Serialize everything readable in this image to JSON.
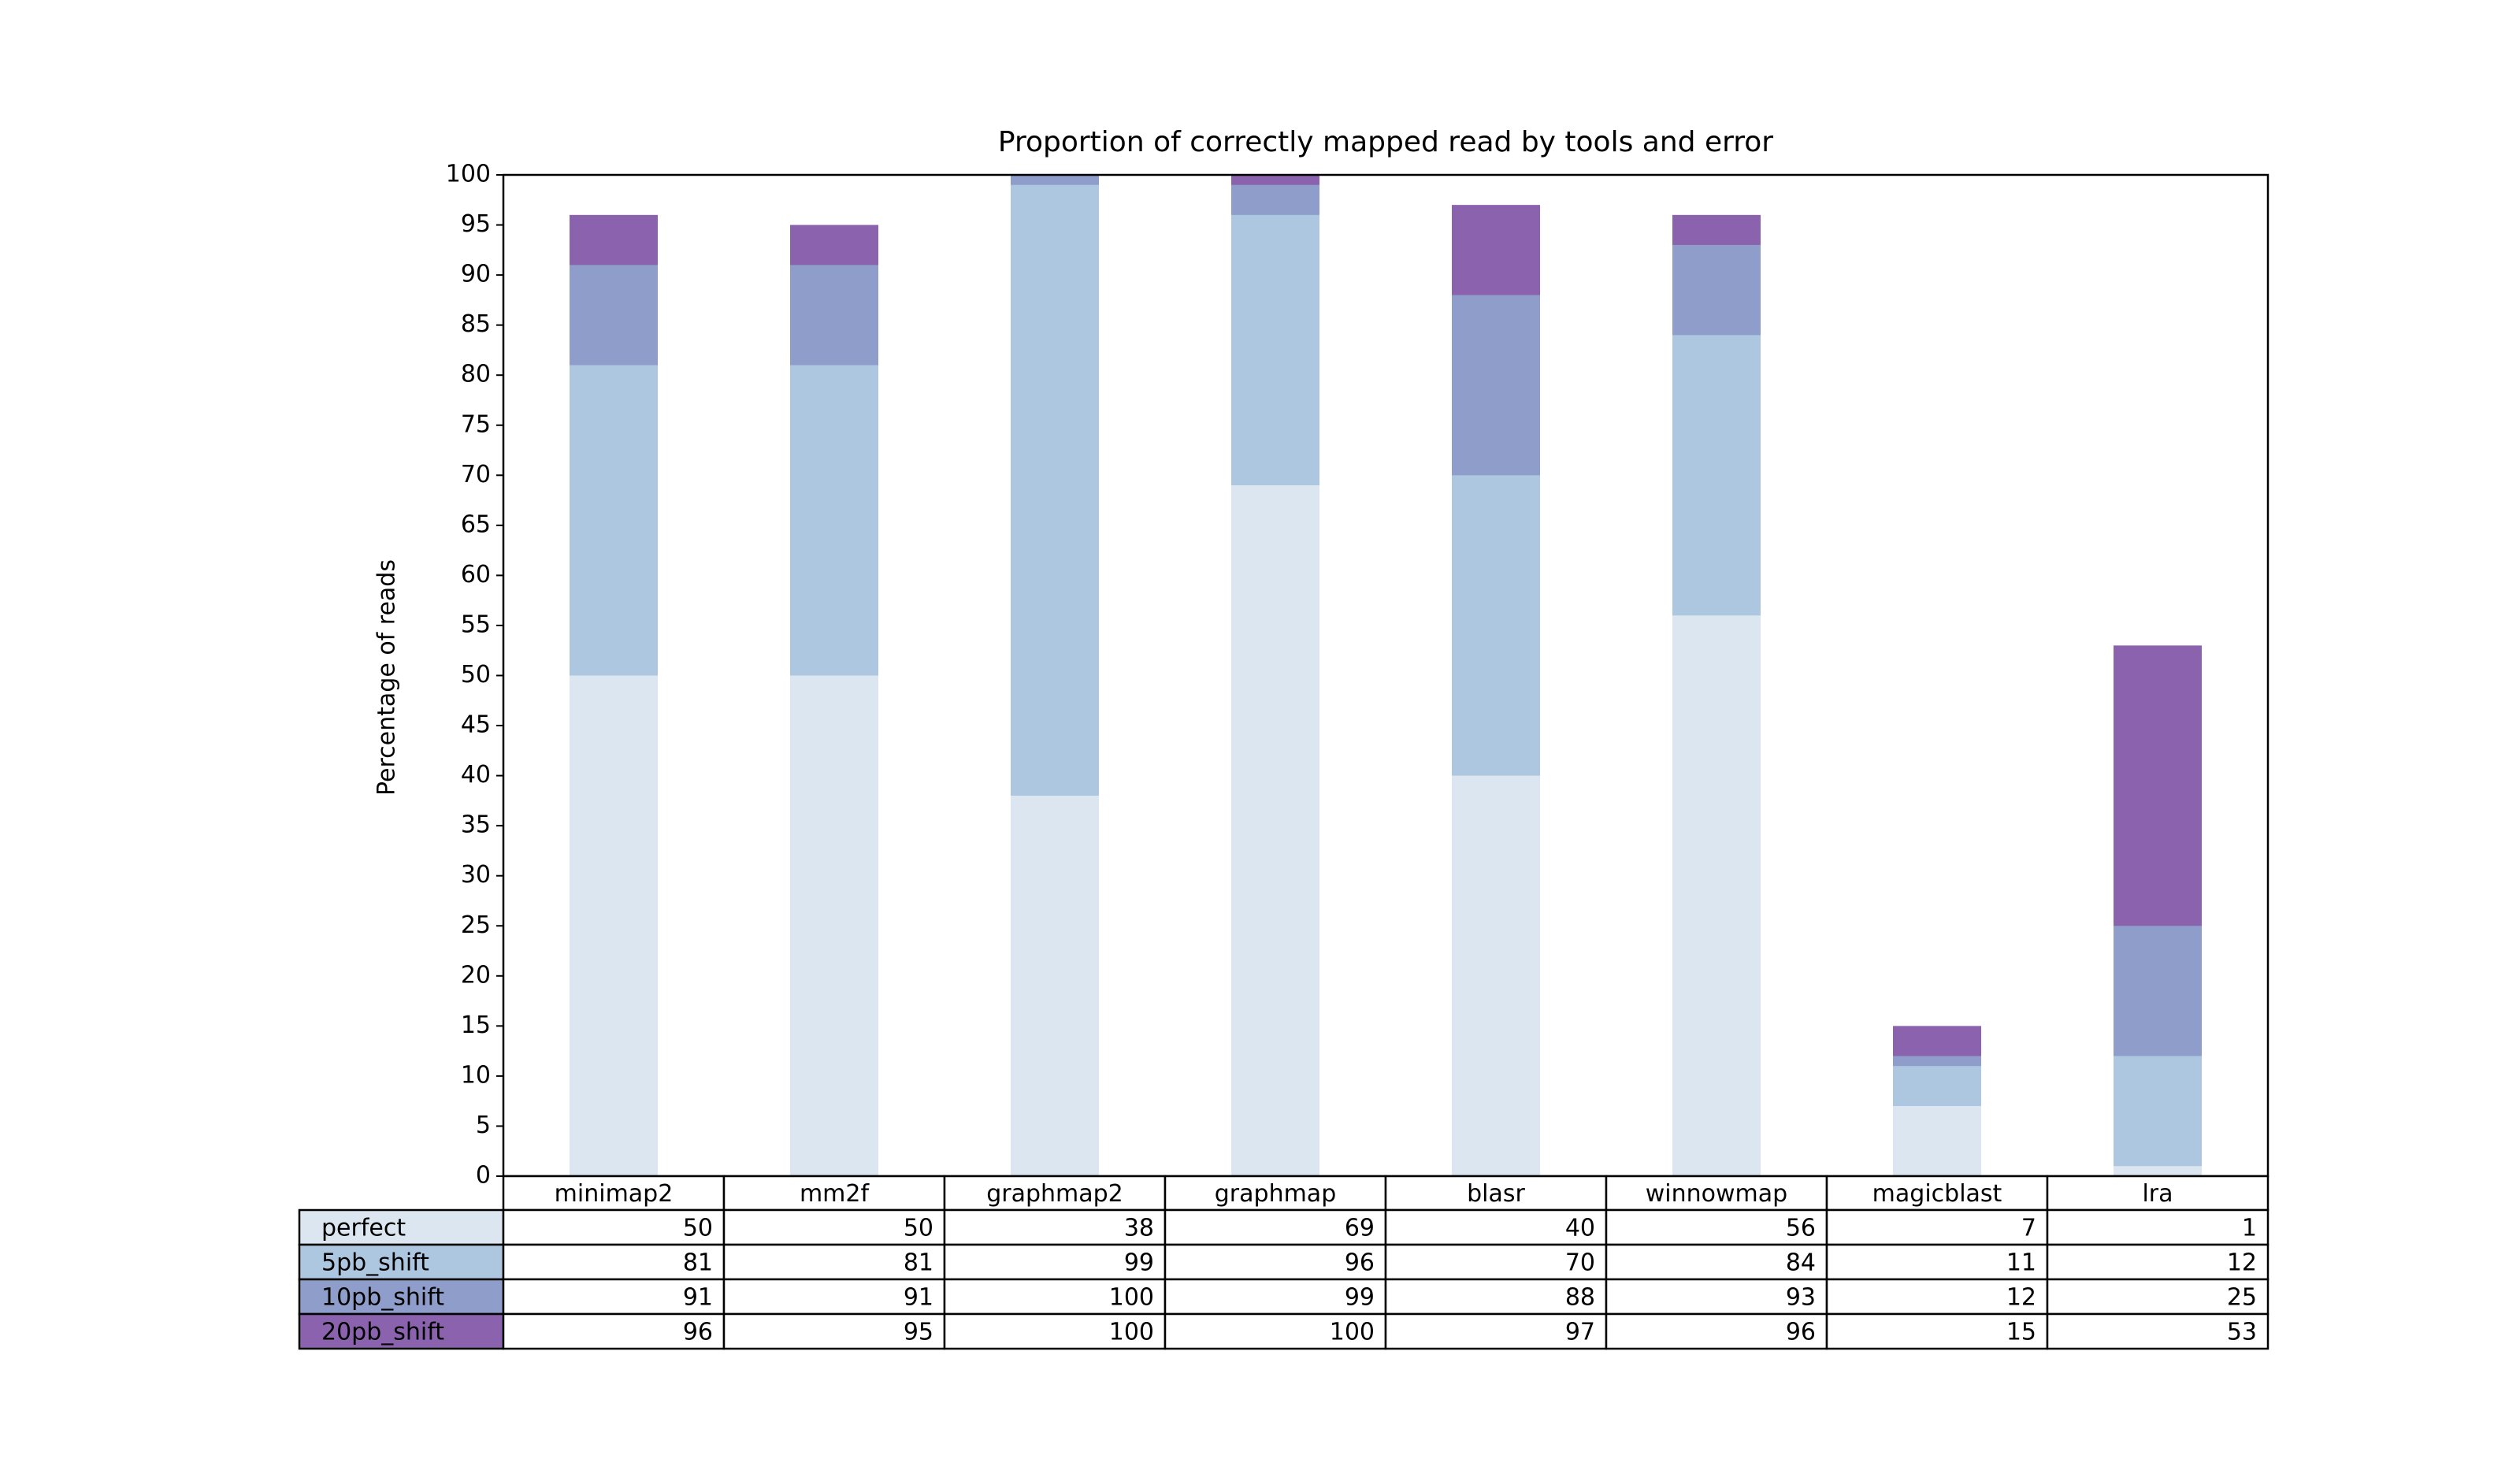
{
  "chart_data": {
    "type": "bar",
    "title": "Proportion of correctly mapped read by tools and error",
    "y_label": "Percentage of reads",
    "categories": [
      "minimap2",
      "mm2f",
      "graphmap2",
      "graphmap",
      "blasr",
      "winnowmap",
      "magicblast",
      "lra"
    ],
    "series": [
      {
        "name": "perfect",
        "color": "#dbe6f0",
        "values": [
          50,
          50,
          38,
          69,
          40,
          56,
          7,
          1
        ]
      },
      {
        "name": "5pb_shift",
        "color": "#adc7e0",
        "values": [
          81,
          81,
          99,
          96,
          70,
          84,
          11,
          12
        ]
      },
      {
        "name": "10pb_shift",
        "color": "#8e9dc9",
        "values": [
          91,
          91,
          100,
          99,
          88,
          93,
          12,
          25
        ]
      },
      {
        "name": "20pb_shift",
        "color": "#8a62ae",
        "values": [
          96,
          95,
          100,
          100,
          97,
          96,
          15,
          53
        ]
      }
    ],
    "ylim": [
      0,
      100
    ],
    "yticks": [
      0,
      5,
      10,
      15,
      20,
      25,
      30,
      35,
      40,
      45,
      50,
      55,
      60,
      65,
      70,
      75,
      80,
      85,
      90,
      95,
      100
    ],
    "grid": false
  }
}
